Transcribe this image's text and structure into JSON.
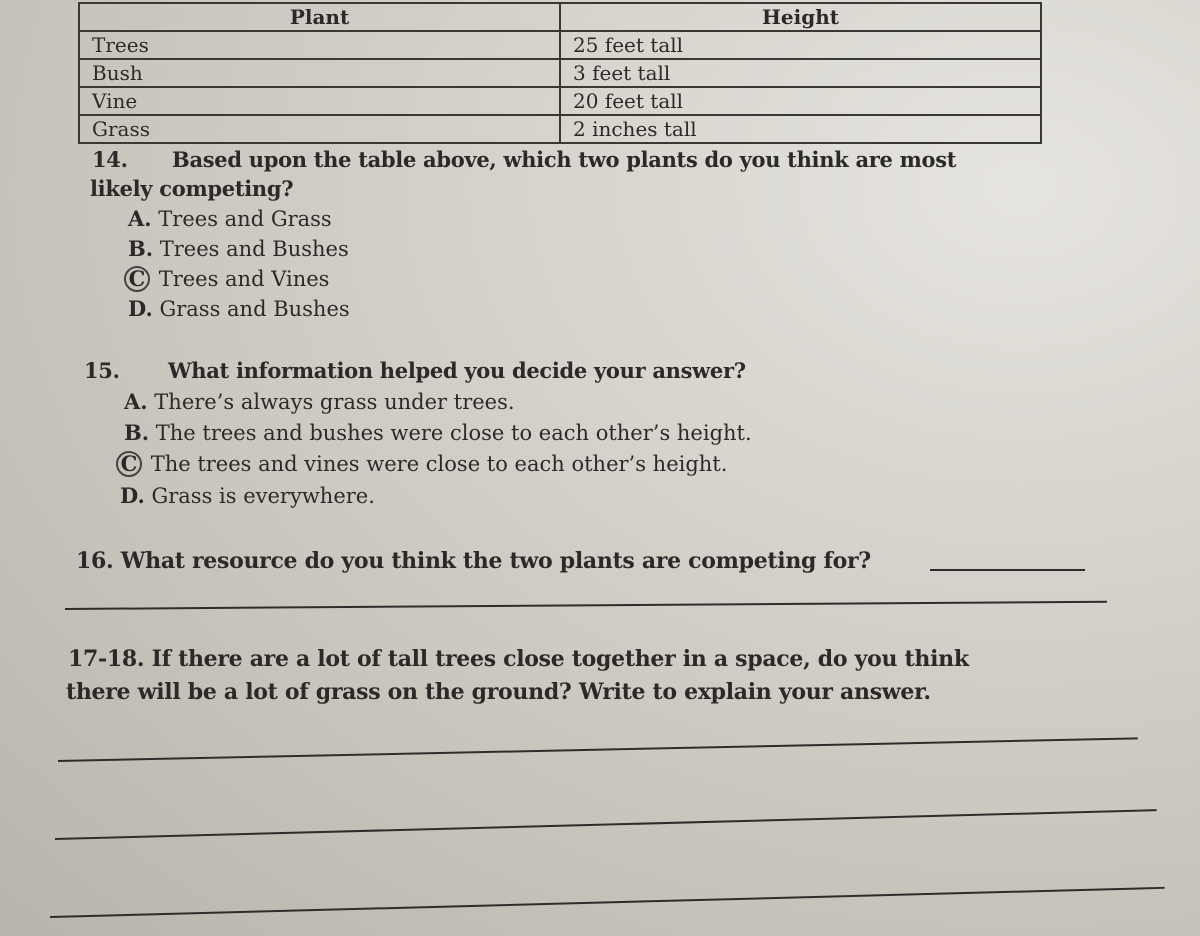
{
  "table": {
    "headers": [
      "Plant",
      "Height"
    ],
    "rows": [
      [
        "Trees",
        "25 feet tall"
      ],
      [
        "Bush",
        "3 feet tall"
      ],
      [
        "Vine",
        "20 feet tall"
      ],
      [
        "Grass",
        "2 inches tall"
      ]
    ]
  },
  "q14": {
    "number": "14.",
    "text1": "Based upon the table above, which two plants do you think are most",
    "text2": "likely competing?",
    "options": [
      {
        "letter": "A.",
        "text": "Trees and Grass"
      },
      {
        "letter": "B.",
        "text": "Trees and Bushes"
      },
      {
        "letter": "C",
        "text": "Trees and Vines",
        "circled": true
      },
      {
        "letter": "D.",
        "text": "Grass and Bushes"
      }
    ]
  },
  "q15": {
    "number": "15.",
    "text": "What information helped you decide your answer?",
    "options": [
      {
        "letter": "A.",
        "text": "There’s always grass under trees."
      },
      {
        "letter": "B.",
        "text": "The trees and bushes were close to each other’s height."
      },
      {
        "letter": "C",
        "text": "The trees and vines were close to each other’s height.",
        "circled": true
      },
      {
        "letter": "D.",
        "text": "Grass is everywhere."
      }
    ]
  },
  "q16": {
    "text": "16. What resource do you think the two plants are competing for?"
  },
  "q17": {
    "text1": "17-18. If there are a lot of tall trees close together in a space, do you think",
    "text2": "there will be a lot of grass on the ground? Write to explain your answer."
  }
}
